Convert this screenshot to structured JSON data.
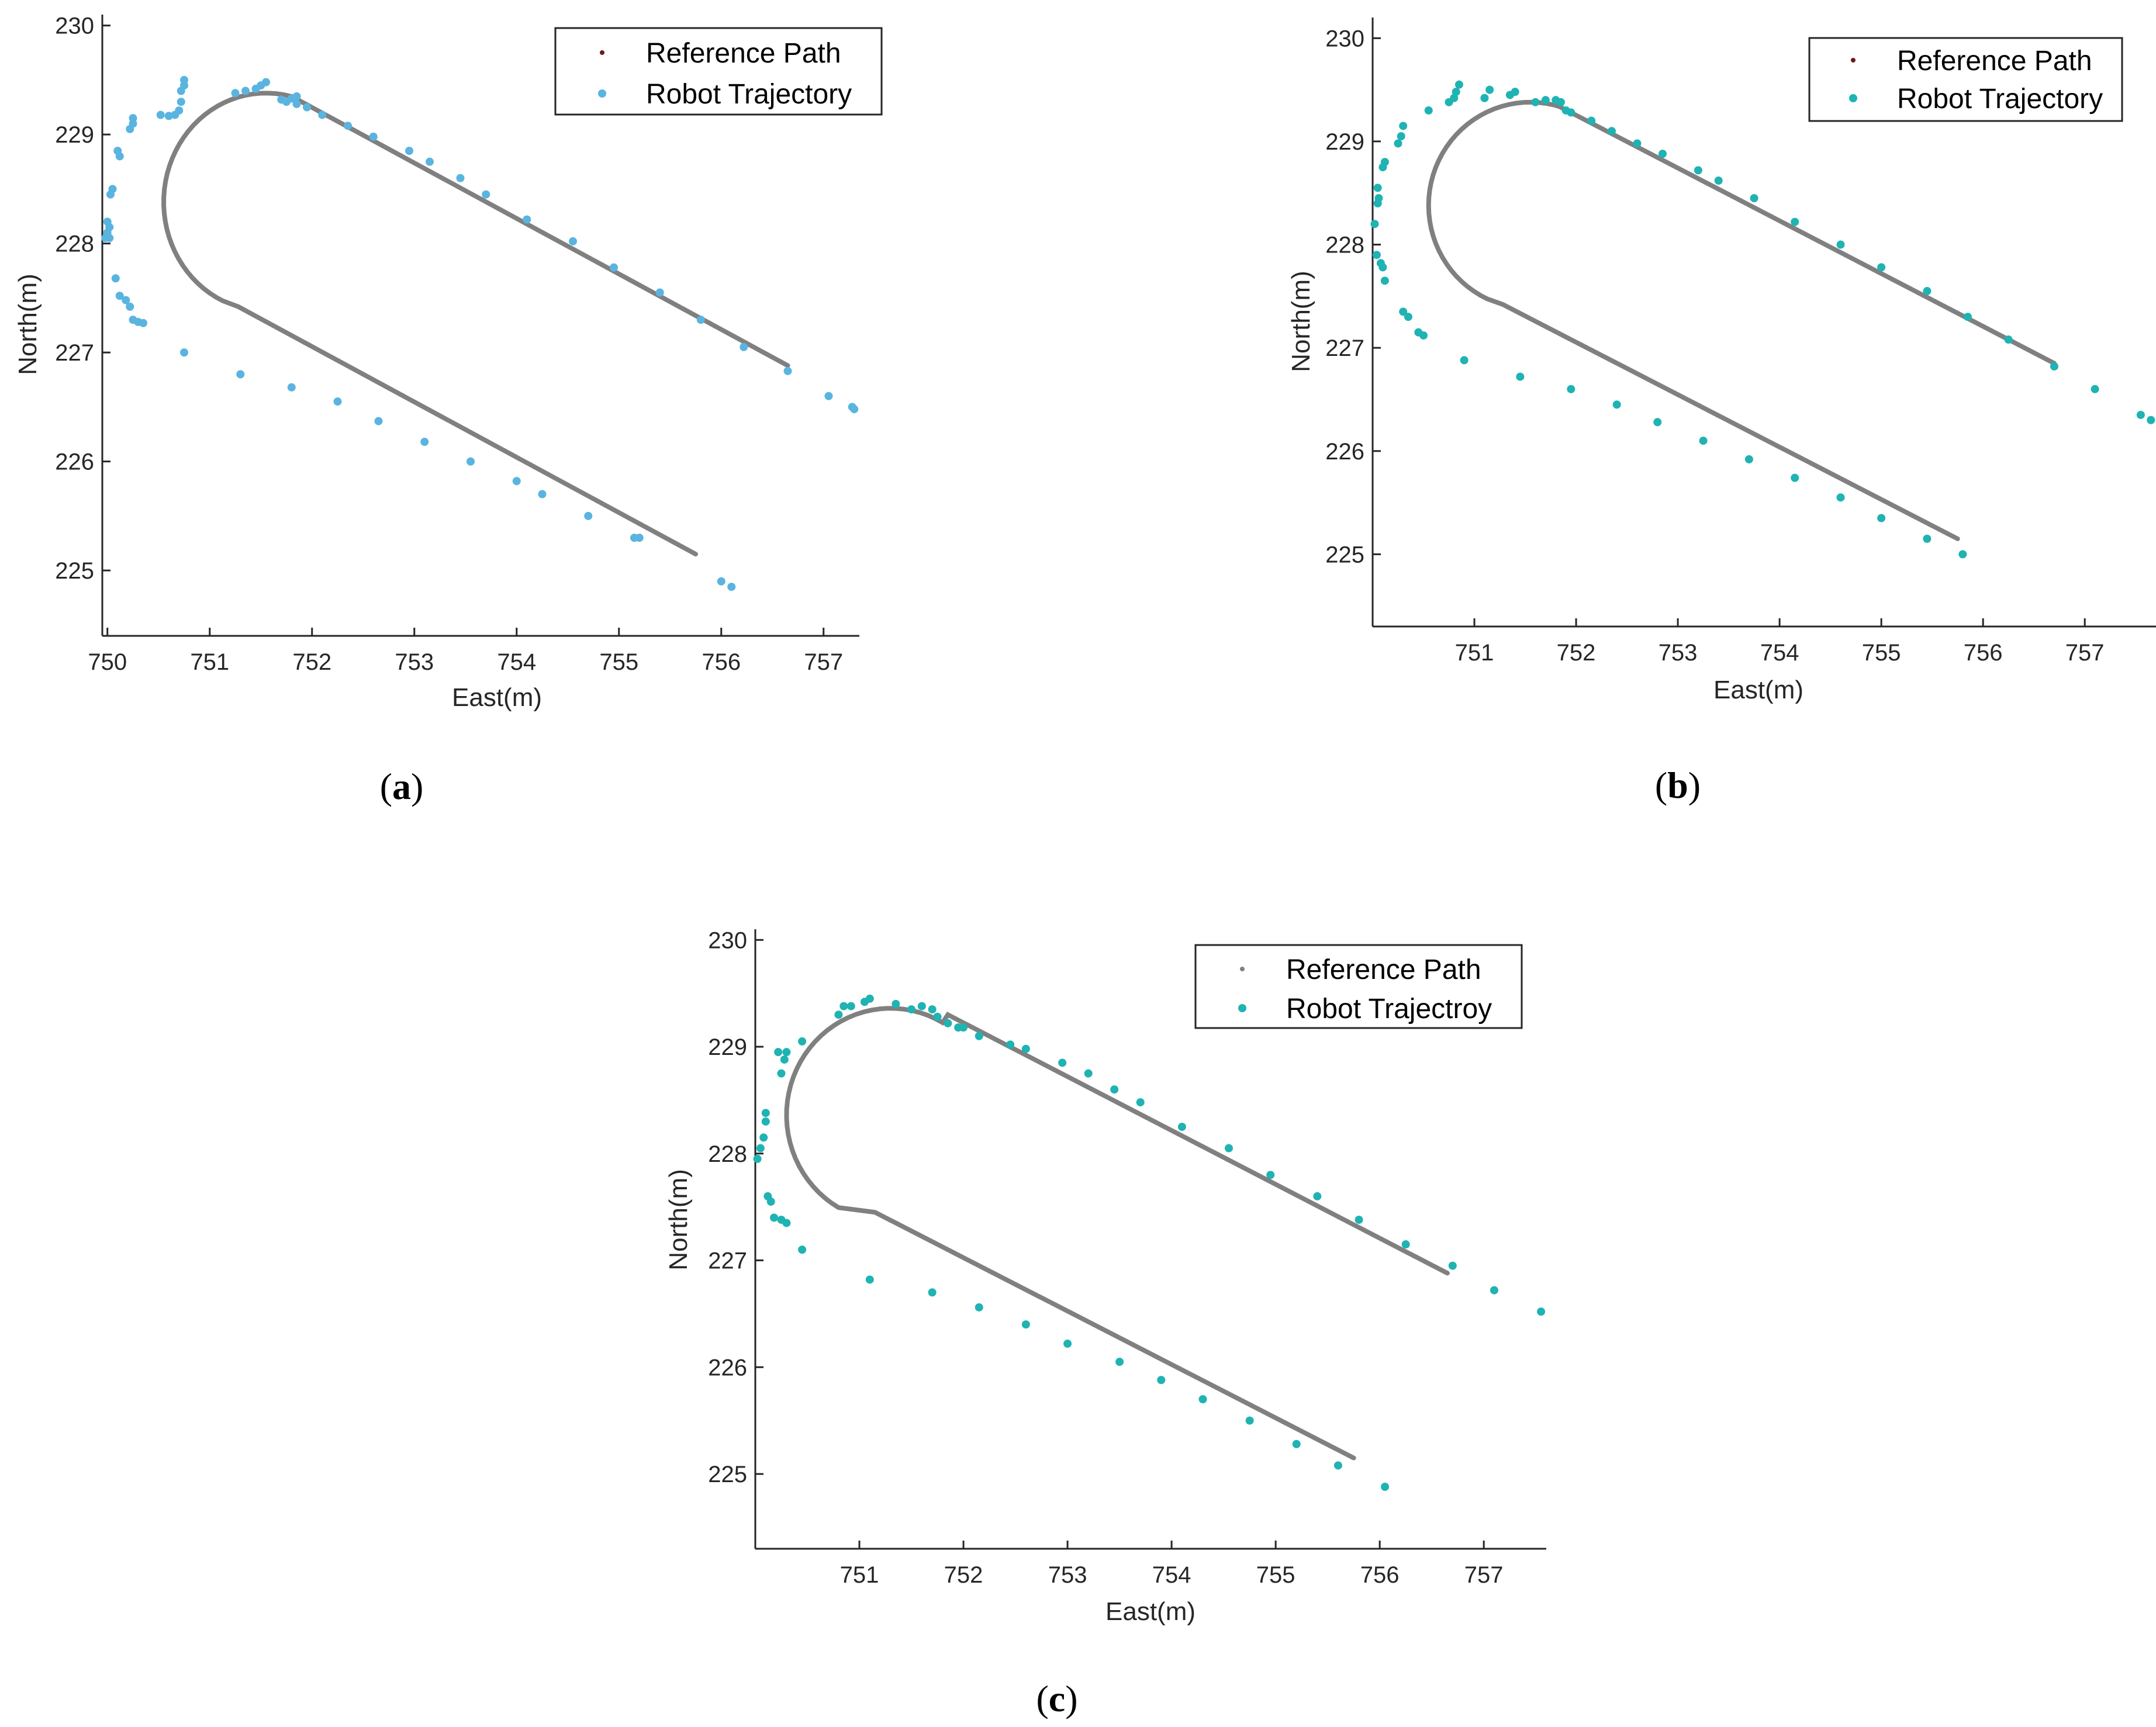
{
  "colors": {
    "reference": "#808080",
    "reference_marker": "#6b1a1a",
    "robot_a": "#5ab4e0",
    "robot_bc": "#1fb3b3",
    "axis": "#262626"
  },
  "chart_data": [
    {
      "id": "a",
      "type": "scatter",
      "caption_letter": "a",
      "xlabel": "East(m)",
      "ylabel": "North(m)",
      "xlim": [
        749.95,
        757.35
      ],
      "ylim": [
        224.4,
        230.1
      ],
      "xticks": [
        750,
        751,
        752,
        753,
        754,
        755,
        756,
        757
      ],
      "yticks": [
        225,
        226,
        227,
        228,
        229,
        230
      ],
      "legend": {
        "position": "top-right",
        "entries": [
          "Reference Path",
          "Robot Trajectory"
        ]
      },
      "reference_path": {
        "name": "Reference Path",
        "straight1": [
          [
            756.65,
            226.88
          ],
          [
            751.8,
            229.35
          ]
        ],
        "arc": {
          "center": [
            751.55,
            228.38
          ],
          "radius": 1.0,
          "start_angle_deg": 76,
          "end_angle_deg": 245
        },
        "straight2": [
          [
            751.28,
            227.42
          ],
          [
            755.75,
            225.15
          ]
        ]
      },
      "series": [
        {
          "name": "Robot Trajectory",
          "points": [
            [
              757.3,
              226.48
            ],
            [
              757.28,
              226.5
            ],
            [
              757.05,
              226.6
            ],
            [
              756.65,
              226.83
            ],
            [
              756.22,
              227.05
            ],
            [
              755.8,
              227.3
            ],
            [
              755.4,
              227.55
            ],
            [
              754.95,
              227.78
            ],
            [
              754.55,
              228.02
            ],
            [
              754.1,
              228.22
            ],
            [
              753.7,
              228.45
            ],
            [
              753.45,
              228.6
            ],
            [
              753.15,
              228.75
            ],
            [
              752.95,
              228.85
            ],
            [
              752.6,
              228.98
            ],
            [
              752.35,
              229.08
            ],
            [
              752.1,
              229.18
            ],
            [
              751.95,
              229.25
            ],
            [
              751.85,
              229.28
            ],
            [
              751.75,
              229.3
            ],
            [
              751.7,
              229.32
            ],
            [
              751.85,
              229.35
            ],
            [
              751.8,
              229.33
            ],
            [
              751.55,
              229.48
            ],
            [
              751.5,
              229.45
            ],
            [
              751.45,
              229.42
            ],
            [
              751.35,
              229.4
            ],
            [
              751.25,
              229.38
            ],
            [
              750.75,
              229.5
            ],
            [
              750.75,
              229.45
            ],
            [
              750.72,
              229.4
            ],
            [
              750.72,
              229.3
            ],
            [
              750.7,
              229.22
            ],
            [
              750.66,
              229.18
            ],
            [
              750.6,
              229.17
            ],
            [
              750.52,
              229.18
            ],
            [
              750.25,
              229.15
            ],
            [
              750.25,
              229.1
            ],
            [
              750.22,
              229.05
            ],
            [
              750.1,
              228.85
            ],
            [
              750.12,
              228.8
            ],
            [
              750.05,
              228.5
            ],
            [
              750.03,
              228.45
            ],
            [
              750.0,
              228.2
            ],
            [
              750.02,
              228.15
            ],
            [
              750.0,
              228.1
            ],
            [
              749.98,
              228.05
            ],
            [
              750.02,
              228.05
            ],
            [
              750.08,
              227.68
            ],
            [
              750.12,
              227.52
            ],
            [
              750.18,
              227.48
            ],
            [
              750.22,
              227.42
            ],
            [
              750.25,
              227.3
            ],
            [
              750.3,
              227.28
            ],
            [
              750.35,
              227.27
            ],
            [
              750.75,
              227.0
            ],
            [
              751.3,
              226.8
            ],
            [
              751.8,
              226.68
            ],
            [
              752.25,
              226.55
            ],
            [
              752.65,
              226.37
            ],
            [
              753.1,
              226.18
            ],
            [
              753.55,
              226.0
            ],
            [
              754.0,
              225.82
            ],
            [
              754.25,
              225.7
            ],
            [
              754.7,
              225.5
            ],
            [
              755.15,
              225.3
            ],
            [
              755.2,
              225.3
            ],
            [
              756.0,
              224.9
            ],
            [
              756.1,
              224.85
            ]
          ]
        }
      ]
    },
    {
      "id": "b",
      "type": "scatter",
      "caption_letter": "b",
      "xlabel": "East(m)",
      "ylabel": "North(m)",
      "xlim": [
        750.0,
        757.7
      ],
      "ylim": [
        224.3,
        230.2
      ],
      "xticks": [
        751,
        752,
        753,
        754,
        755,
        756,
        757
      ],
      "yticks": [
        225,
        226,
        227,
        228,
        229,
        230
      ],
      "legend": {
        "position": "top-right",
        "entries": [
          "Reference Path",
          "Robot Trajectory"
        ]
      },
      "reference_path": {
        "name": "Reference Path",
        "straight1": [
          [
            756.7,
            226.85
          ],
          [
            751.85,
            229.33
          ]
        ],
        "arc": {
          "center": [
            751.55,
            228.38
          ],
          "radius": 1.0,
          "start_angle_deg": 72,
          "end_angle_deg": 245
        },
        "straight2": [
          [
            751.28,
            227.42
          ],
          [
            755.75,
            225.15
          ]
        ]
      },
      "series": [
        {
          "name": "Robot Trajectory",
          "points": [
            [
              757.65,
              226.3
            ],
            [
              757.55,
              226.35
            ],
            [
              757.1,
              226.6
            ],
            [
              756.7,
              226.82
            ],
            [
              756.25,
              227.08
            ],
            [
              755.85,
              227.3
            ],
            [
              755.45,
              227.55
            ],
            [
              755.0,
              227.78
            ],
            [
              754.6,
              228.0
            ],
            [
              754.15,
              228.22
            ],
            [
              753.75,
              228.45
            ],
            [
              753.4,
              228.62
            ],
            [
              753.2,
              228.72
            ],
            [
              752.85,
              228.88
            ],
            [
              752.6,
              228.98
            ],
            [
              752.35,
              229.1
            ],
            [
              752.15,
              229.2
            ],
            [
              751.95,
              229.28
            ],
            [
              751.9,
              229.3
            ],
            [
              751.85,
              229.38
            ],
            [
              751.8,
              229.4
            ],
            [
              751.7,
              229.4
            ],
            [
              751.6,
              229.38
            ],
            [
              751.4,
              229.48
            ],
            [
              751.35,
              229.45
            ],
            [
              751.15,
              229.5
            ],
            [
              751.1,
              229.42
            ],
            [
              750.85,
              229.55
            ],
            [
              750.82,
              229.48
            ],
            [
              750.8,
              229.42
            ],
            [
              750.75,
              229.38
            ],
            [
              750.55,
              229.3
            ],
            [
              750.3,
              229.15
            ],
            [
              750.28,
              229.05
            ],
            [
              750.25,
              228.98
            ],
            [
              750.12,
              228.8
            ],
            [
              750.1,
              228.75
            ],
            [
              750.05,
              228.55
            ],
            [
              750.06,
              228.45
            ],
            [
              750.05,
              228.4
            ],
            [
              750.02,
              228.2
            ],
            [
              750.04,
              227.9
            ],
            [
              750.08,
              227.82
            ],
            [
              750.1,
              227.78
            ],
            [
              750.12,
              227.65
            ],
            [
              750.3,
              227.35
            ],
            [
              750.35,
              227.3
            ],
            [
              750.45,
              227.15
            ],
            [
              750.5,
              227.12
            ],
            [
              750.9,
              226.88
            ],
            [
              751.45,
              226.72
            ],
            [
              751.95,
              226.6
            ],
            [
              752.4,
              226.45
            ],
            [
              752.8,
              226.28
            ],
            [
              753.25,
              226.1
            ],
            [
              753.7,
              225.92
            ],
            [
              754.15,
              225.74
            ],
            [
              754.6,
              225.55
            ],
            [
              755.0,
              225.35
            ],
            [
              755.45,
              225.15
            ],
            [
              755.8,
              225.0
            ]
          ]
        }
      ]
    },
    {
      "id": "c",
      "type": "scatter",
      "caption_letter": "c",
      "xlabel": "East(m)",
      "ylabel": "North(m)",
      "xlim": [
        750.0,
        757.6
      ],
      "ylim": [
        224.3,
        230.1
      ],
      "xticks": [
        751,
        752,
        753,
        754,
        755,
        756,
        757
      ],
      "yticks": [
        225,
        226,
        227,
        228,
        229,
        230
      ],
      "legend": {
        "position": "top-right",
        "entries": [
          "Reference Path",
          "Robot Trajectroy"
        ]
      },
      "reference_path": {
        "name": "Reference Path",
        "straight1": [
          [
            756.65,
            226.88
          ],
          [
            751.85,
            229.3
          ]
        ],
        "arc": {
          "center": [
            751.3,
            228.36
          ],
          "radius": 1.0,
          "start_angle_deg": 60,
          "end_angle_deg": 240
        },
        "straight2": [
          [
            751.15,
            227.45
          ],
          [
            755.75,
            225.15
          ]
        ]
      },
      "series": [
        {
          "name": "Robot Trajectroy",
          "points": [
            [
              757.55,
              226.52
            ],
            [
              757.1,
              226.72
            ],
            [
              756.7,
              226.95
            ],
            [
              756.25,
              227.15
            ],
            [
              755.8,
              227.38
            ],
            [
              755.4,
              227.6
            ],
            [
              754.95,
              227.8
            ],
            [
              754.55,
              228.05
            ],
            [
              754.1,
              228.25
            ],
            [
              753.7,
              228.48
            ],
            [
              753.45,
              228.6
            ],
            [
              753.2,
              228.75
            ],
            [
              752.95,
              228.85
            ],
            [
              752.6,
              228.98
            ],
            [
              752.45,
              229.02
            ],
            [
              752.15,
              229.1
            ],
            [
              752.0,
              229.18
            ],
            [
              751.95,
              229.18
            ],
            [
              751.85,
              229.22
            ],
            [
              751.75,
              229.28
            ],
            [
              751.7,
              229.35
            ],
            [
              751.6,
              229.38
            ],
            [
              751.5,
              229.35
            ],
            [
              751.35,
              229.4
            ],
            [
              751.1,
              229.45
            ],
            [
              751.05,
              229.42
            ],
            [
              750.92,
              229.38
            ],
            [
              750.85,
              229.38
            ],
            [
              750.8,
              229.3
            ],
            [
              750.45,
              229.05
            ],
            [
              750.3,
              228.95
            ],
            [
              750.28,
              228.88
            ],
            [
              750.25,
              228.75
            ],
            [
              750.22,
              228.95
            ],
            [
              750.1,
              228.38
            ],
            [
              750.1,
              228.3
            ],
            [
              750.08,
              228.15
            ],
            [
              750.05,
              228.05
            ],
            [
              750.02,
              227.95
            ],
            [
              750.12,
              227.6
            ],
            [
              750.15,
              227.55
            ],
            [
              750.18,
              227.4
            ],
            [
              750.25,
              227.38
            ],
            [
              750.3,
              227.35
            ],
            [
              750.45,
              227.1
            ],
            [
              751.1,
              226.82
            ],
            [
              751.7,
              226.7
            ],
            [
              752.15,
              226.56
            ],
            [
              752.6,
              226.4
            ],
            [
              753.0,
              226.22
            ],
            [
              753.5,
              226.05
            ],
            [
              753.9,
              225.88
            ],
            [
              754.3,
              225.7
            ],
            [
              754.75,
              225.5
            ],
            [
              755.2,
              225.28
            ],
            [
              755.6,
              225.08
            ],
            [
              756.05,
              224.88
            ]
          ]
        }
      ]
    }
  ]
}
